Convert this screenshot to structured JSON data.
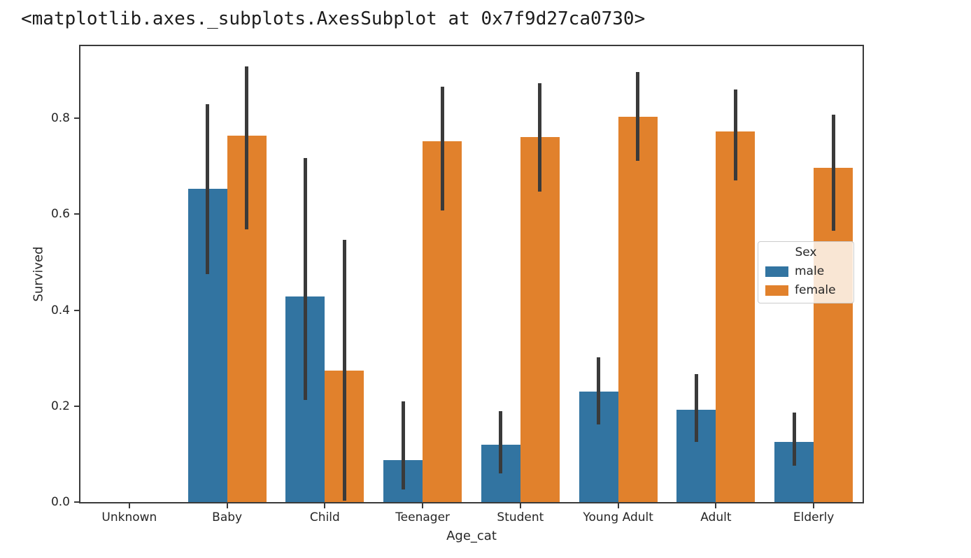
{
  "output": {
    "repr_line": "<matplotlib.axes._subplots.AxesSubplot at 0x7f9d27ca0730>"
  },
  "chart_data": {
    "type": "bar",
    "title": "",
    "xlabel": "Age_cat",
    "ylabel": "Survived",
    "categories": [
      "Unknown",
      "Baby",
      "Child",
      "Teenager",
      "Student",
      "Young Adult",
      "Adult",
      "Elderly"
    ],
    "series": [
      {
        "name": "male",
        "color": "#3274A1",
        "values": [
          0,
          0.653,
          0.428,
          0.087,
          0.12,
          0.23,
          0.192,
          0.125
        ],
        "ci_low": [
          null,
          0.476,
          0.213,
          0.026,
          0.06,
          0.162,
          0.126,
          0.076
        ],
        "ci_high": [
          null,
          0.83,
          0.718,
          0.21,
          0.189,
          0.302,
          0.267,
          0.186
        ]
      },
      {
        "name": "female",
        "color": "#E1812C",
        "values": [
          0,
          0.764,
          0.274,
          0.752,
          0.761,
          0.804,
          0.773,
          0.697
        ],
        "ci_low": [
          null,
          0.568,
          0.003,
          0.608,
          0.648,
          0.711,
          0.67,
          0.565
        ],
        "ci_high": [
          null,
          0.908,
          0.547,
          0.866,
          0.873,
          0.897,
          0.86,
          0.808
        ]
      }
    ],
    "yticks": [
      0.0,
      0.2,
      0.4,
      0.6,
      0.8
    ],
    "ytick_labels": [
      "0.0",
      "0.2",
      "0.4",
      "0.6",
      "0.8"
    ],
    "ylim": [
      0,
      0.95
    ],
    "grid": false,
    "error_bar_color": "#3A3A3A",
    "legend": {
      "title": "Sex",
      "entries": [
        "male",
        "female"
      ],
      "position": "center right"
    }
  }
}
